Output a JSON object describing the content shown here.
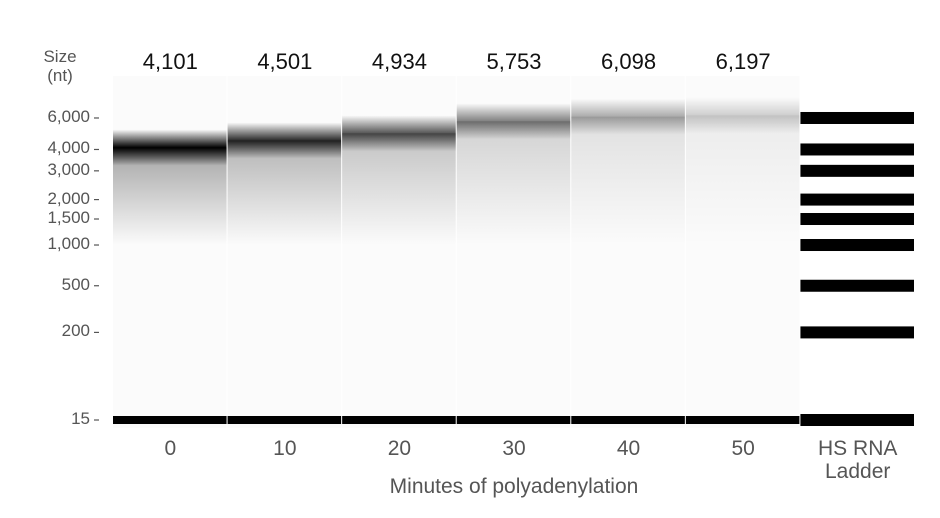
{
  "chart_data": {
    "type": "gel",
    "y_label": "Size (nt)",
    "x_label": "Minutes of polyadenylation",
    "categories": [
      "0",
      "10",
      "20",
      "30",
      "40",
      "50",
      "HS RNA Ladder"
    ],
    "values": [
      4101,
      4501,
      4934,
      5753,
      6098,
      6197,
      null
    ],
    "value_labels": [
      "4,101",
      "4,501",
      "4,934",
      "5,753",
      "6,098",
      "6,197",
      null
    ],
    "ylim": [
      10,
      10000
    ],
    "yticks": [
      {
        "value": 6000,
        "label": "6,000"
      },
      {
        "value": 4000,
        "label": "4,000"
      },
      {
        "value": 3000,
        "label": "3,000"
      },
      {
        "value": 2000,
        "label": "2,000"
      },
      {
        "value": 1500,
        "label": "1,500"
      },
      {
        "value": 1000,
        "label": "1,000"
      },
      {
        "value": 500,
        "label": "500"
      },
      {
        "value": 200,
        "label": "200"
      },
      {
        "value": 15,
        "label": "15"
      }
    ]
  }
}
